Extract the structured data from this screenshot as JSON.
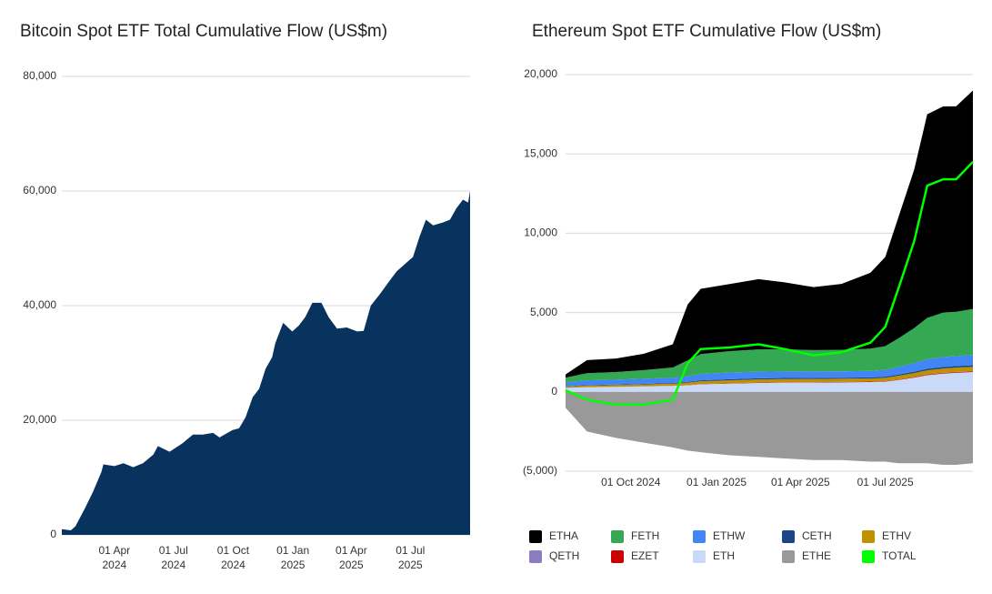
{
  "chart_data": [
    {
      "type": "area",
      "title": "Bitcoin Spot ETF Total Cumulative Flow (US$m)",
      "color": "#08335e",
      "x": [
        "2024-01-11",
        "2024-01-25",
        "2024-02-01",
        "2024-02-15",
        "2024-02-28",
        "2024-03-12",
        "2024-03-15",
        "2024-04-01",
        "2024-04-15",
        "2024-04-30",
        "2024-05-15",
        "2024-05-31",
        "2024-06-07",
        "2024-06-25",
        "2024-07-15",
        "2024-07-31",
        "2024-08-15",
        "2024-08-31",
        "2024-09-10",
        "2024-09-30",
        "2024-10-10",
        "2024-10-20",
        "2024-10-31",
        "2024-11-10",
        "2024-11-20",
        "2024-11-30",
        "2024-12-05",
        "2024-12-17",
        "2024-12-31",
        "2025-01-10",
        "2025-01-20",
        "2025-01-31",
        "2025-02-14",
        "2025-02-25",
        "2025-03-10",
        "2025-03-25",
        "2025-04-10",
        "2025-04-20",
        "2025-05-01",
        "2025-05-15",
        "2025-05-31",
        "2025-06-10",
        "2025-06-25",
        "2025-07-05",
        "2025-07-15",
        "2025-07-25",
        "2025-08-05",
        "2025-08-20",
        "2025-08-31",
        "2025-09-10",
        "2025-09-20",
        "2025-09-28",
        "2025-10-01"
      ],
      "values": [
        1000,
        800,
        1500,
        4500,
        7500,
        11000,
        12300,
        12000,
        12500,
        11800,
        12500,
        14000,
        15500,
        14500,
        16000,
        17500,
        17500,
        17800,
        17000,
        18300,
        18600,
        20500,
        24000,
        25500,
        29000,
        31000,
        33500,
        37000,
        35500,
        36500,
        38000,
        40500,
        40500,
        38000,
        36000,
        36200,
        35500,
        35600,
        40000,
        42000,
        44500,
        46000,
        47500,
        48500,
        52000,
        55000,
        54000,
        54500,
        55000,
        57000,
        58500,
        58000,
        60000
      ],
      "xlim": [
        "2024-01-11",
        "2025-10-01"
      ],
      "xticks": [
        {
          "value": "2024-04-01",
          "label": "01 Apr 2024"
        },
        {
          "value": "2024-07-01",
          "label": "01 Jul 2024"
        },
        {
          "value": "2024-10-01",
          "label": "01 Oct 2024"
        },
        {
          "value": "2025-01-01",
          "label": "01 Jan 2025"
        },
        {
          "value": "2025-04-01",
          "label": "01 Apr 2025"
        },
        {
          "value": "2025-07-01",
          "label": "01 Jul 2025"
        }
      ],
      "ylim": [
        0,
        80000
      ],
      "yticks": [
        0,
        {
          "value": 20000,
          "label": "20,000"
        },
        {
          "value": 40000,
          "label": "40,000"
        },
        {
          "value": 60000,
          "label": "60,000"
        },
        {
          "value": 80000,
          "label": "80,000"
        }
      ],
      "grid": true
    },
    {
      "type": "area",
      "stacked": true,
      "title": "Ethereum Spot ETF Cumulative Flow (US$m)",
      "x": [
        "2024-07-23",
        "2024-08-15",
        "2024-09-15",
        "2024-10-15",
        "2024-11-15",
        "2024-12-01",
        "2024-12-15",
        "2025-01-15",
        "2025-02-15",
        "2025-03-15",
        "2025-04-15",
        "2025-05-15",
        "2025-06-15",
        "2025-07-01",
        "2025-07-15",
        "2025-08-01",
        "2025-08-15",
        "2025-09-01",
        "2025-09-15",
        "2025-10-03"
      ],
      "series": [
        {
          "name": "ETHA",
          "color": "#000000",
          "values": [
            200,
            820,
            850,
            1030,
            1460,
            3520,
            4120,
            4230,
            4430,
            4220,
            3970,
            4160,
            4780,
            5620,
            7630,
            9980,
            12840,
            13000,
            12950,
            13770
          ]
        },
        {
          "name": "FETH",
          "color": "#34a853",
          "values": [
            300,
            450,
            480,
            550,
            650,
            1000,
            1250,
            1350,
            1400,
            1400,
            1350,
            1350,
            1400,
            1500,
            1800,
            2200,
            2600,
            2800,
            2800,
            2900
          ]
        },
        {
          "name": "ETHW",
          "color": "#4285f4",
          "values": [
            250,
            300,
            310,
            320,
            330,
            350,
            400,
            420,
            420,
            410,
            400,
            400,
            410,
            430,
            480,
            550,
            600,
            620,
            620,
            650
          ]
        },
        {
          "name": "CETH",
          "color": "#1c4587",
          "values": [
            20,
            30,
            30,
            35,
            40,
            50,
            60,
            70,
            70,
            70,
            70,
            70,
            70,
            70,
            80,
            90,
            100,
            100,
            100,
            100
          ]
        },
        {
          "name": "ETHV",
          "color": "#bf9000",
          "values": [
            80,
            100,
            110,
            120,
            130,
            150,
            170,
            190,
            200,
            200,
            200,
            200,
            200,
            210,
            230,
            250,
            260,
            270,
            270,
            270
          ]
        },
        {
          "name": "QETH",
          "color": "#8e7cc3",
          "values": [
            0,
            0,
            0,
            0,
            0,
            0,
            0,
            0,
            0,
            0,
            0,
            0,
            0,
            0,
            0,
            0,
            10,
            15,
            20,
            20
          ]
        },
        {
          "name": "EZET",
          "color": "#cc0000",
          "values": [
            0,
            0,
            0,
            0,
            10,
            15,
            20,
            20,
            25,
            25,
            25,
            25,
            25,
            25,
            30,
            35,
            40,
            40,
            40,
            40
          ]
        },
        {
          "name": "ETH",
          "color": "#c9daf8",
          "values": [
            250,
            300,
            320,
            350,
            380,
            420,
            480,
            520,
            560,
            580,
            590,
            600,
            620,
            650,
            750,
            900,
            1050,
            1150,
            1200,
            1250
          ]
        },
        {
          "name": "ETHE",
          "color": "#999999",
          "values": [
            -1000,
            -2500,
            -2900,
            -3200,
            -3500,
            -3700,
            -3800,
            -4000,
            -4100,
            -4200,
            -4300,
            -4300,
            -4400,
            -4400,
            -4500,
            -4500,
            -4500,
            -4600,
            -4600,
            -4500
          ]
        },
        {
          "name": "TOTAL",
          "color": "#00ff00",
          "type": "line",
          "values": [
            100,
            -500,
            -800,
            -800,
            -500,
            1800,
            2700,
            2800,
            3000,
            2700,
            2300,
            2500,
            3100,
            4100,
            6500,
            9500,
            13000,
            13400,
            13400,
            14500
          ]
        }
      ],
      "xlim": [
        "2024-07-23",
        "2025-10-03"
      ],
      "xticks": [
        {
          "value": "2024-10-01",
          "label": "01 Oct 2024"
        },
        {
          "value": "2025-01-01",
          "label": "01 Jan 2025"
        },
        {
          "value": "2025-04-01",
          "label": "01 Apr 2025"
        },
        {
          "value": "2025-07-01",
          "label": "01 Jul 2025"
        }
      ],
      "ylim": [
        -5000,
        20000
      ],
      "yticks": [
        {
          "value": -5000,
          "label": "(5,000)"
        },
        0,
        {
          "value": 5000,
          "label": "5,000"
        },
        {
          "value": 10000,
          "label": "10,000"
        },
        {
          "value": 15000,
          "label": "15,000"
        },
        {
          "value": 20000,
          "label": "20,000"
        }
      ],
      "grid": true,
      "legend": "bottom"
    }
  ]
}
